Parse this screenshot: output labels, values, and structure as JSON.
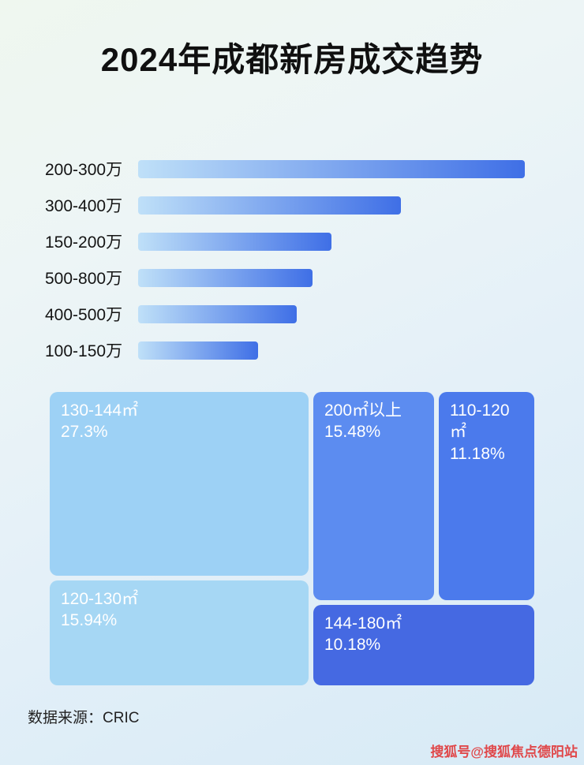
{
  "page": {
    "title": "2024年成都新房成交趋势",
    "source": "数据来源：CRIC",
    "watermark": "搜狐号@搜狐焦点德阳站"
  },
  "colors": {
    "bar_gradient_start": "#bfe0f8",
    "bar_gradient_end": "#3f6fe6",
    "title_text": "#101010",
    "treemap_text": "#ffffff",
    "watermark_text": "#e0484a"
  },
  "chart_data": [
    {
      "type": "bar",
      "orientation": "horizontal",
      "title": "2024年成都新房成交趋势",
      "categories": [
        "200-300万",
        "300-400万",
        "150-200万",
        "500-800万",
        "400-500万",
        "100-150万"
      ],
      "values": [
        100,
        68,
        50,
        45,
        41,
        31
      ],
      "xlabel": "",
      "ylabel": "",
      "xlim": [
        0,
        100
      ],
      "grid": false,
      "legend": false
    },
    {
      "type": "treemap",
      "title": "",
      "items": [
        {
          "label": "130-144㎡",
          "pct": "27.3%",
          "value": 27.3,
          "color": "#9dd1f5"
        },
        {
          "label": "120-130㎡",
          "pct": "15.94%",
          "value": 15.94,
          "color": "#a6d7f4"
        },
        {
          "label": "200㎡以上",
          "pct": "15.48%",
          "value": 15.48,
          "color": "#5c8cf0"
        },
        {
          "label": "110-120㎡",
          "pct": "11.18%",
          "value": 11.18,
          "color": "#4b7aec"
        },
        {
          "label": "144-180㎡",
          "pct": "10.18%",
          "value": 10.18,
          "color": "#4569e2"
        }
      ],
      "legend": false
    }
  ]
}
